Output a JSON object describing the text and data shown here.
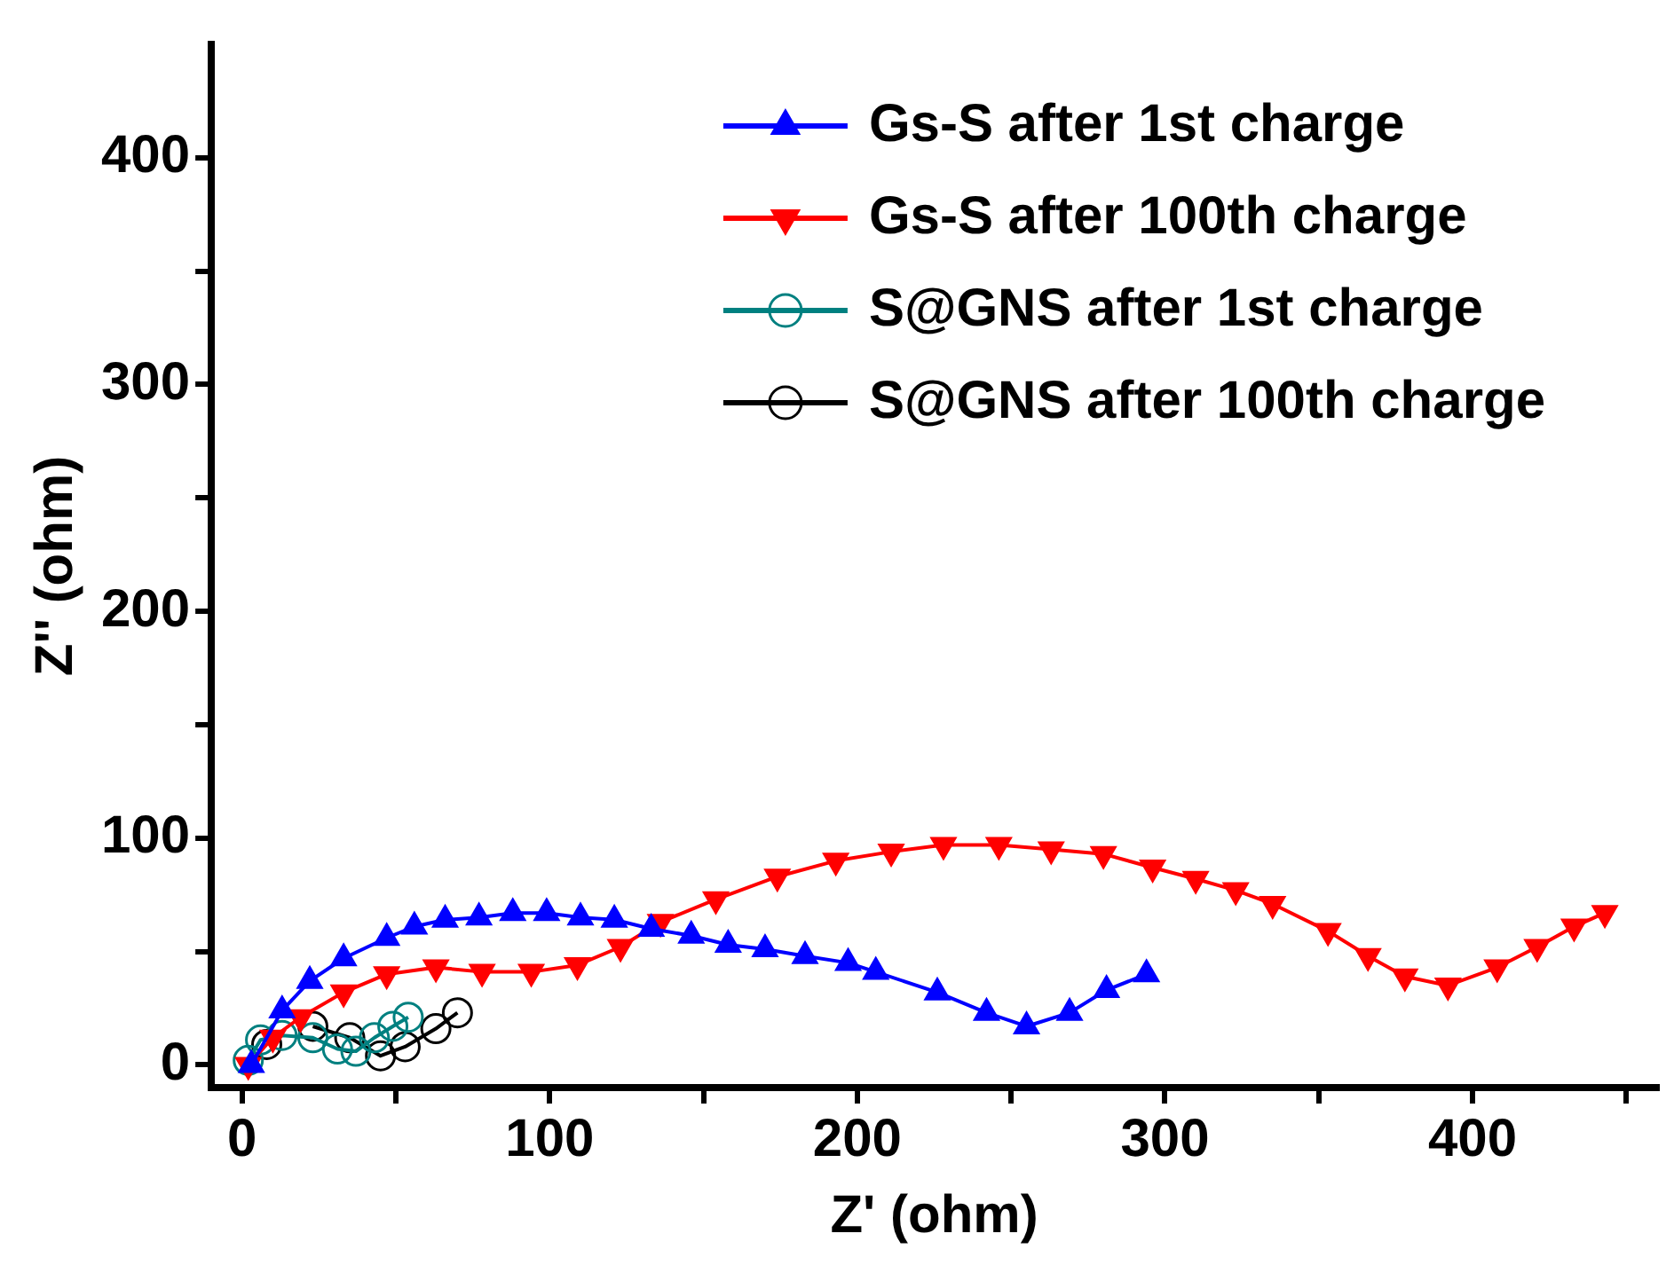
{
  "chart_data": {
    "type": "line",
    "xlabel": "Z' (ohm)",
    "ylabel": "Z'' (ohm)",
    "xlim": [
      -10,
      460
    ],
    "ylim": [
      -10,
      450
    ],
    "xticks": [
      0,
      {
        "value": 50,
        "label": null
      },
      100,
      {
        "value": 150,
        "label": null
      },
      200,
      {
        "value": 250,
        "label": null
      },
      300,
      {
        "value": 350,
        "label": null
      },
      400,
      {
        "value": 450,
        "label": null
      }
    ],
    "yticks": [
      0,
      {
        "value": 50,
        "label": null
      },
      100,
      {
        "value": 150,
        "label": null
      },
      200,
      {
        "value": 250,
        "label": null
      },
      300,
      {
        "value": 350,
        "label": null
      },
      400
    ],
    "grid": false,
    "legend": "top right",
    "line_style": "solid",
    "series": [
      {
        "name": "Gs-S after 1st charge",
        "color": "#0000ff",
        "marker": "triangle",
        "x": [
          3,
          13,
          22,
          33,
          47,
          56,
          66,
          77,
          88,
          99,
          110,
          121,
          133,
          146,
          158,
          170,
          183,
          197,
          206,
          226,
          242,
          255,
          269,
          281,
          294
        ],
        "values": [
          0,
          24,
          37,
          47,
          56,
          61,
          64,
          65,
          67,
          67,
          65,
          64,
          60,
          57,
          53,
          51,
          48,
          45,
          41,
          32,
          23,
          17,
          23,
          33,
          40
        ]
      },
      {
        "name": "Gs-S after 100th charge",
        "color": "#ff0000",
        "marker": "triangle_down",
        "x": [
          2,
          10,
          19,
          33,
          47,
          63,
          78,
          94,
          109,
          123,
          136,
          154,
          174,
          193,
          211,
          228,
          246,
          263,
          280,
          296,
          310,
          323,
          335,
          353,
          366,
          378,
          392,
          408,
          421,
          433,
          443
        ],
        "values": [
          0,
          12,
          21,
          32,
          40,
          43,
          41,
          41,
          44,
          52,
          63,
          73,
          83,
          90,
          94,
          97,
          97,
          95,
          93,
          87,
          82,
          77,
          71,
          59,
          48,
          39,
          35,
          43,
          52,
          61,
          67
        ]
      },
      {
        "name": "S@GNS after 1st charge",
        "color": "#008080",
        "marker": "circle",
        "x": [
          2,
          6,
          13,
          23,
          31,
          37,
          43,
          49,
          54
        ],
        "values": [
          2,
          11,
          13,
          12,
          7,
          6,
          12,
          17,
          21
        ]
      },
      {
        "name": "S@GNS after 100th charge",
        "color": "#000000",
        "marker": "circle",
        "x": [
          8,
          15,
          23,
          35,
          45,
          53,
          63,
          70
        ],
        "values": [
          9,
          null,
          17,
          12,
          4,
          8,
          16,
          23
        ]
      }
    ]
  }
}
